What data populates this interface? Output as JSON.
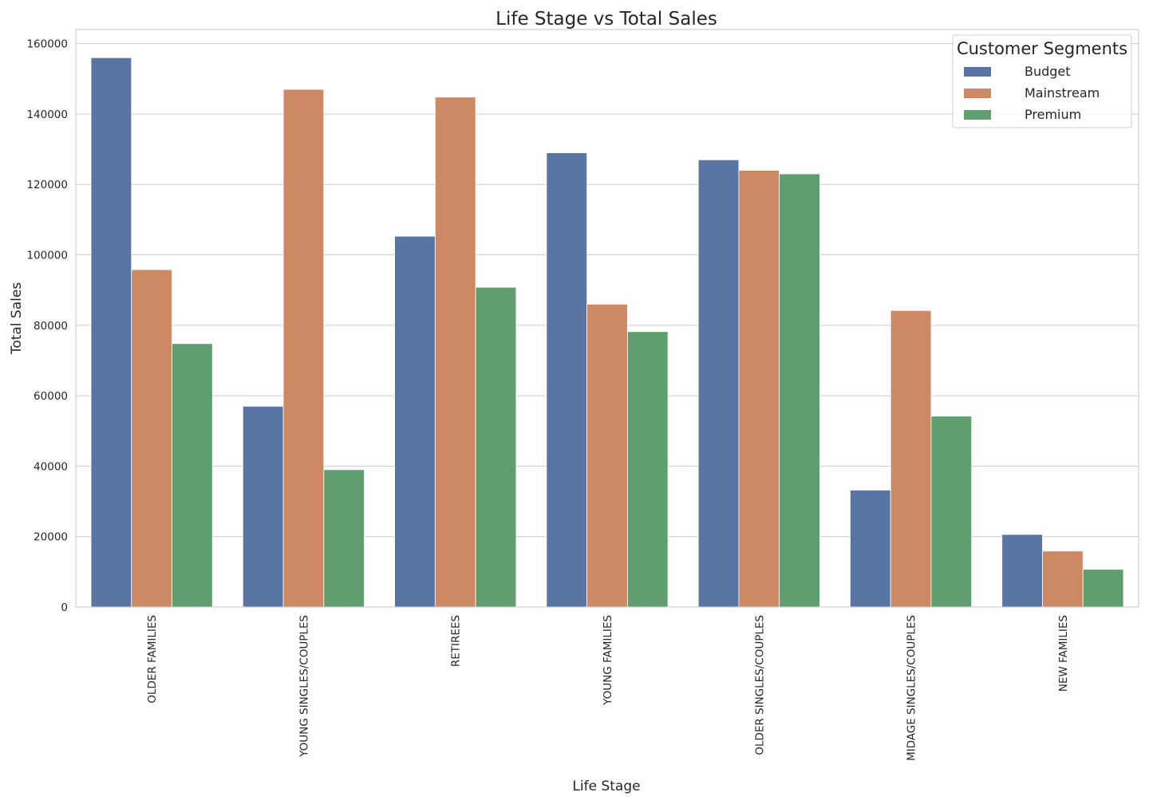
{
  "chart_data": {
    "type": "bar",
    "title": "Life Stage vs Total Sales",
    "xlabel": "Life Stage",
    "ylabel": "Total Sales",
    "ylim": [
      0,
      164000
    ],
    "yticks": [
      0,
      20000,
      40000,
      60000,
      80000,
      100000,
      120000,
      140000,
      160000
    ],
    "grid": true,
    "legend": {
      "title": "Customer Segments",
      "placement": "top-right"
    },
    "categories": [
      "OLDER FAMILIES",
      "YOUNG SINGLES/COUPLES",
      "RETIREES",
      "YOUNG FAMILIES",
      "OLDER SINGLES/COUPLES",
      "MIDAGE SINGLES/COUPLES",
      "NEW FAMILIES"
    ],
    "series": [
      {
        "name": "Budget",
        "color": "#5875a4",
        "values": [
          156000,
          57000,
          105300,
          129000,
          127000,
          33200,
          20600
        ]
      },
      {
        "name": "Mainstream",
        "color": "#cc8963",
        "values": [
          95800,
          147000,
          144800,
          86000,
          124000,
          84200,
          15900
        ]
      },
      {
        "name": "Premium",
        "color": "#5f9e6e",
        "values": [
          74800,
          39000,
          90800,
          78200,
          123000,
          54200,
          10700
        ]
      }
    ]
  }
}
